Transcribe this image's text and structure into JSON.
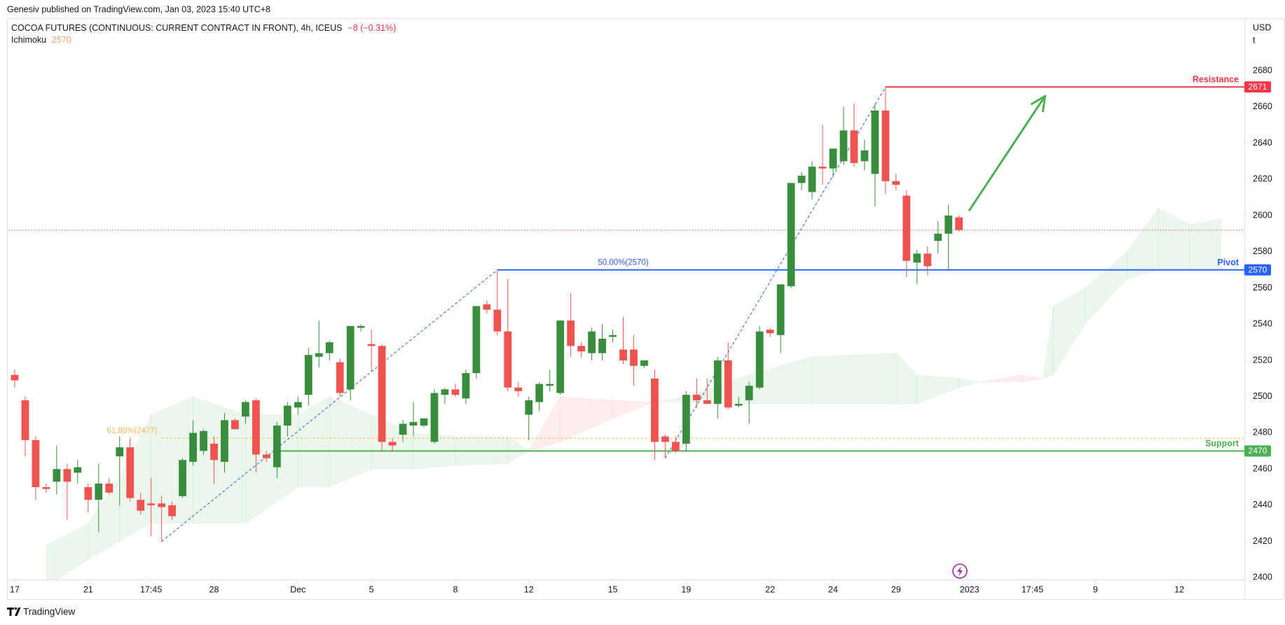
{
  "header": {
    "publisher_line": "Genesiv published on TradingView.com, Jan 03, 2023 15:40 UTC+8"
  },
  "footer": {
    "brand": "TradingView"
  },
  "chart_data": {
    "type": "candlestick",
    "title": "COCOA FUTURES (CONTINUOUS: CURRENT CONTRACT IN FRONT), 4h, ICEUS",
    "change_label": "−8 (−0.31%)",
    "indicator": {
      "name": "Ichimoku",
      "value": 2570,
      "color": "#f7a172"
    },
    "currency": "USD",
    "unit": "t",
    "up_color": "#388e3c",
    "down_color": "#ef5350",
    "grid": false,
    "xlim": [
      -0.6,
      117.2
    ],
    "xticks": [
      {
        "value": 0,
        "label": "17"
      },
      {
        "value": 7,
        "label": "21"
      },
      {
        "value": 13,
        "label": "17:45"
      },
      {
        "value": 19,
        "label": "28"
      },
      {
        "value": 27,
        "label": "Dec"
      },
      {
        "value": 34,
        "label": "5"
      },
      {
        "value": 42,
        "label": "8"
      },
      {
        "value": 49,
        "label": "12"
      },
      {
        "value": 57,
        "label": "15"
      },
      {
        "value": 64,
        "label": "19"
      },
      {
        "value": 72,
        "label": "22"
      },
      {
        "value": 78,
        "label": "24"
      },
      {
        "value": 84,
        "label": "29"
      },
      {
        "value": 91,
        "label": "2023"
      },
      {
        "value": 97,
        "label": "17:45"
      },
      {
        "value": 103,
        "label": "9"
      },
      {
        "value": 111,
        "label": "12"
      }
    ],
    "ylim": [
      2399,
      2709
    ],
    "yticks": [
      2400,
      2420,
      2440,
      2460,
      2480,
      2500,
      2520,
      2540,
      2560,
      2580,
      2600,
      2620,
      2640,
      2660,
      2680
    ],
    "x": [
      0,
      1,
      2,
      3,
      4,
      5,
      6,
      7,
      8,
      9,
      10,
      11,
      12,
      13,
      14,
      15,
      16,
      17,
      18,
      19,
      20,
      21,
      22,
      23,
      24,
      25,
      26,
      27,
      28,
      29,
      30,
      31,
      32,
      33,
      34,
      35,
      36,
      37,
      38,
      39,
      40,
      41,
      42,
      43,
      44,
      45,
      46,
      47,
      48,
      49,
      50,
      51,
      52,
      53,
      54,
      55,
      56,
      57,
      58,
      59,
      60,
      61,
      62,
      63,
      64,
      65,
      66,
      67,
      68,
      69,
      70,
      71,
      72,
      73,
      74,
      75,
      76,
      77,
      78,
      79,
      80,
      81,
      82,
      83,
      84,
      85,
      86,
      87,
      88,
      89,
      90
    ],
    "open": [
      2512,
      2498,
      2476,
      2450,
      2453,
      2460,
      2458,
      2450,
      2443,
      2452,
      2467,
      2472,
      2443,
      2441,
      2441,
      2440,
      2445,
      2464,
      2470,
      2474,
      2464,
      2487,
      2489,
      2498,
      2468,
      2461,
      2484,
      2494,
      2501,
      2522,
      2524,
      2519,
      2504,
      2538,
      2529,
      2528,
      2475,
      2479,
      2484,
      2484,
      2475,
      2501,
      2504,
      2499,
      2513,
      2551,
      2548,
      2536,
      2505,
      2490,
      2497,
      2506,
      2502,
      2542,
      2528,
      2524,
      2524,
      2533,
      2526,
      2526,
      2517,
      2510,
      2478,
      2475,
      2474,
      2501,
      2498,
      2496,
      2520,
      2495,
      2498,
      2505,
      2537,
      2534,
      2561,
      2618,
      2613,
      2627,
      2626,
      2630,
      2647,
      2630,
      2623,
      2658,
      2619,
      2611,
      2574,
      2579,
      2586,
      2590,
      2599
    ],
    "high": [
      2515,
      2500,
      2478,
      2452,
      2473,
      2463,
      2465,
      2452,
      2463,
      2455,
      2478,
      2477,
      2447,
      2455,
      2445,
      2442,
      2466,
      2487,
      2482,
      2478,
      2491,
      2488,
      2498,
      2499,
      2470,
      2486,
      2497,
      2500,
      2527,
      2542,
      2531,
      2521,
      2539,
      2540,
      2537,
      2529,
      2477,
      2487,
      2497,
      2488,
      2504,
      2505,
      2507,
      2515,
      2550,
      2553,
      2570,
      2565,
      2508,
      2500,
      2508,
      2515,
      2542,
      2557,
      2530,
      2538,
      2540,
      2537,
      2544,
      2534,
      2520,
      2515,
      2479,
      2478,
      2503,
      2510,
      2510,
      2522,
      2530,
      2500,
      2508,
      2539,
      2538,
      2562,
      2618,
      2624,
      2630,
      2650,
      2637,
      2660,
      2662,
      2642,
      2662,
      2671,
      2623,
      2614,
      2581,
      2583,
      2597,
      2606,
      2600
    ],
    "low": [
      2505,
      2467,
      2443,
      2447,
      2446,
      2432,
      2452,
      2436,
      2425,
      2446,
      2440,
      2442,
      2435,
      2423,
      2420,
      2432,
      2444,
      2462,
      2468,
      2452,
      2458,
      2482,
      2485,
      2458,
      2464,
      2455,
      2478,
      2490,
      2495,
      2516,
      2520,
      2500,
      2498,
      2536,
      2514,
      2470,
      2470,
      2475,
      2478,
      2483,
      2474,
      2496,
      2500,
      2496,
      2510,
      2546,
      2534,
      2503,
      2500,
      2476,
      2492,
      2503,
      2501,
      2522,
      2522,
      2520,
      2520,
      2530,
      2518,
      2506,
      2516,
      2465,
      2466,
      2469,
      2470,
      2494,
      2496,
      2488,
      2493,
      2494,
      2485,
      2504,
      2533,
      2524,
      2560,
      2614,
      2609,
      2617,
      2621,
      2628,
      2627,
      2625,
      2605,
      2612,
      2614,
      2566,
      2562,
      2567,
      2579,
      2570,
      2591
    ],
    "close": [
      2509,
      2476,
      2450,
      2449,
      2460,
      2453,
      2461,
      2443,
      2452,
      2447,
      2472,
      2444,
      2437,
      2440,
      2439,
      2434,
      2465,
      2480,
      2481,
      2465,
      2487,
      2482,
      2497,
      2468,
      2466,
      2484,
      2495,
      2497,
      2523,
      2524,
      2530,
      2502,
      2539,
      2539,
      2528,
      2475,
      2473,
      2485,
      2486,
      2488,
      2502,
      2504,
      2501,
      2513,
      2550,
      2548,
      2536,
      2505,
      2503,
      2498,
      2507,
      2507,
      2542,
      2528,
      2525,
      2536,
      2532,
      2534,
      2520,
      2517,
      2520,
      2475,
      2475,
      2470,
      2501,
      2498,
      2496,
      2520,
      2494,
      2496,
      2506,
      2536,
      2535,
      2562,
      2618,
      2622,
      2627,
      2626,
      2637,
      2647,
      2629,
      2636,
      2658,
      2619,
      2617,
      2575,
      2579,
      2572,
      2590,
      2600,
      2592
    ],
    "cloud": {
      "up_color": "rgba(76,175,80,0.11)",
      "down_color": "rgba(242,54,69,0.09)",
      "x": [
        3,
        7,
        10,
        13,
        17,
        22,
        27,
        30,
        34,
        38,
        42,
        47,
        49,
        52,
        57,
        61,
        64,
        70,
        76,
        84,
        86,
        90,
        92,
        96,
        98,
        99,
        102,
        106,
        109,
        112,
        115
      ],
      "span_a": [
        2418,
        2430,
        2455,
        2490,
        2500,
        2490,
        2490,
        2500,
        2490,
        2480,
        2478,
        2478,
        2470,
        2475,
        2488,
        2497,
        2500,
        2512,
        2522,
        2524,
        2512,
        2510,
        2508,
        2508,
        2510,
        2550,
        2560,
        2580,
        2604,
        2595,
        2598
      ],
      "span_b": [
        2395,
        2410,
        2420,
        2430,
        2430,
        2430,
        2450,
        2450,
        2460,
        2460,
        2462,
        2463,
        2470,
        2500,
        2498,
        2497,
        2497,
        2496,
        2496,
        2496,
        2496,
        2505,
        2508,
        2512,
        2510,
        2512,
        2540,
        2565,
        2570,
        2570,
        2570
      ]
    },
    "last_price": {
      "value": 2592,
      "color": "#ef5350"
    },
    "levels": [
      {
        "name": "Resistance",
        "value": 2671,
        "x_start": 83,
        "color": "#f23645"
      },
      {
        "name": "Pivot",
        "value": 2570,
        "x_start": 46,
        "color": "#2962ff"
      },
      {
        "name": "Support",
        "value": 2470,
        "x_start": 25.2,
        "color": "#4caf50"
      }
    ],
    "fib_levels": [
      {
        "label": "61.80%(2477)",
        "value": 2477,
        "x_start": 14,
        "color": "#ffb74d"
      },
      {
        "label": "50.00%(2570)",
        "value": 2570,
        "x_start": 46,
        "color": "#2962ff"
      }
    ],
    "trend_lines": [
      {
        "x": [
          14,
          46
        ],
        "y": [
          2420,
          2570
        ],
        "color": "#2962ff"
      },
      {
        "x": [
          62,
          83
        ],
        "y": [
          2466,
          2671
        ],
        "color": "#2962ff"
      }
    ],
    "arrow": {
      "x": [
        91,
        98.2
      ],
      "y": [
        2603,
        2666
      ],
      "color": "#4caf50"
    }
  }
}
